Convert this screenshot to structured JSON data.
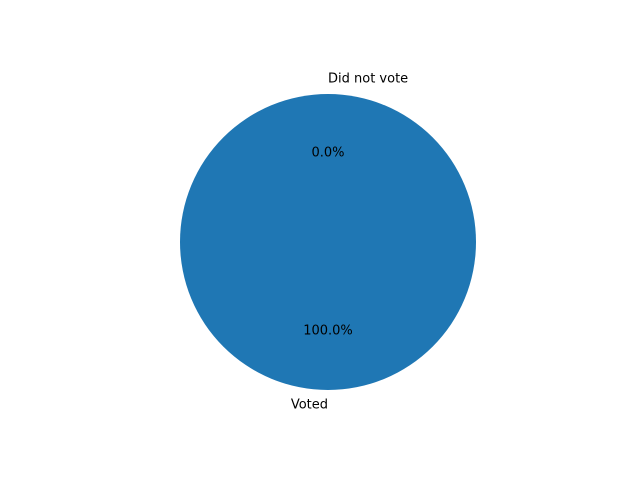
{
  "chart_data": {
    "type": "pie",
    "categories": [
      "Voted",
      "Did not vote"
    ],
    "values": [
      100.0,
      0.0
    ],
    "percent_labels": [
      "100.0%",
      "0.0%"
    ],
    "colors": [
      "#1f77b4",
      "#ff7f0e"
    ],
    "start_angle_deg": 90,
    "legend": "none"
  }
}
